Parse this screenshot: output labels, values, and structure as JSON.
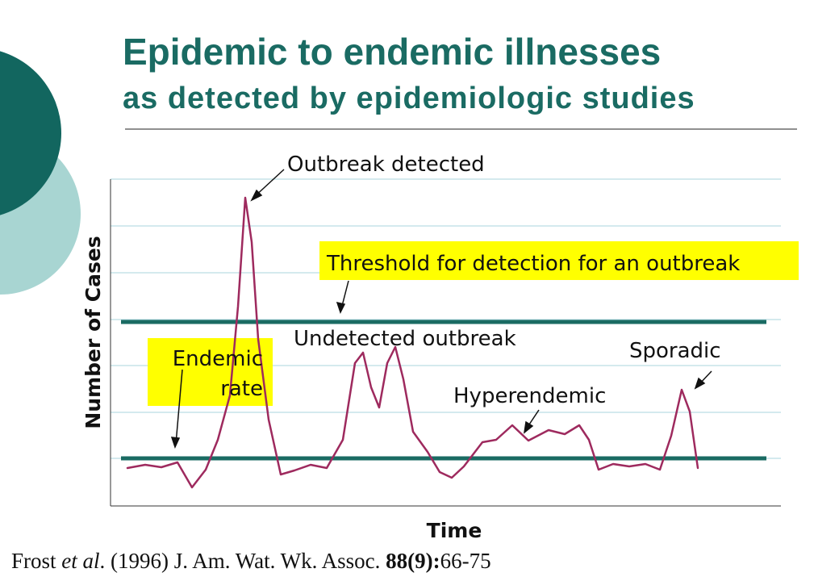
{
  "title": {
    "line1": "Epidemic to endemic illnesses",
    "line2": "as detected by epidemiologic studies"
  },
  "axes": {
    "y_label": "Number of Cases",
    "x_label": "Time"
  },
  "annotations": {
    "outbreak_detected": "Outbreak detected",
    "threshold": "Threshold for detection for an outbreak",
    "undetected_outbreak": "Undetected outbreak",
    "endemic_rate": [
      "Endemic",
      "rate"
    ],
    "sporadic": "Sporadic",
    "hyperendemic": "Hyperendemic"
  },
  "citation": {
    "author": "Frost ",
    "et_al": "et al",
    "rest": ". (1996) J. Am. Wat. Wk. Assoc. ",
    "volume": "88(9):",
    "pages": "66-75"
  }
}
